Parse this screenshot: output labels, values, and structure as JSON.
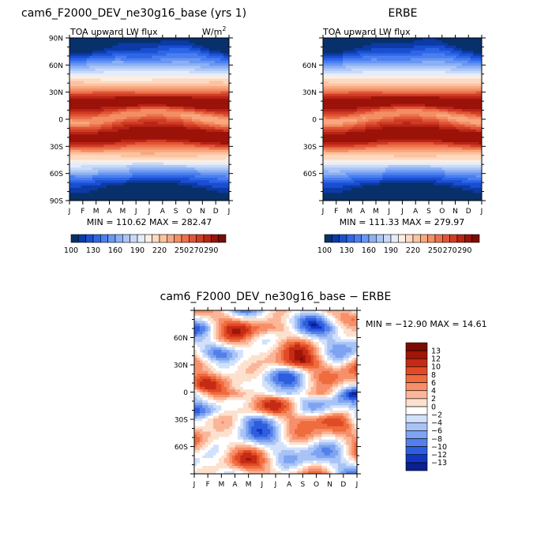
{
  "chart_data": [
    {
      "type": "heatmap",
      "title": "cam6_F2000_DEV_ne30g16_base (yrs 1)",
      "subtitle": "TOA upward LW flux",
      "units": "W/m",
      "units_exp": "2",
      "stats": "MIN = 110.62 MAX = 282.47",
      "x": [
        "J",
        "F",
        "M",
        "A",
        "M",
        "J",
        "J",
        "A",
        "S",
        "O",
        "N",
        "D",
        "J"
      ],
      "y": [
        "90N",
        "60N",
        "30N",
        "0",
        "30S",
        "60S",
        "90S"
      ],
      "levels": [
        100,
        110,
        120,
        130,
        140,
        150,
        160,
        170,
        180,
        190,
        200,
        210,
        220,
        230,
        240,
        250,
        260,
        270,
        280,
        290,
        300
      ],
      "colorbar_labels": [
        "100",
        "130",
        "160",
        "190",
        "220",
        "250",
        "270",
        "290"
      ]
    },
    {
      "type": "heatmap",
      "title": "ERBE",
      "subtitle": "TOA upward LW flux",
      "stats": "MIN = 111.33 MAX = 279.97",
      "x": [
        "J",
        "F",
        "M",
        "A",
        "M",
        "J",
        "J",
        "A",
        "S",
        "O",
        "N",
        "D",
        "J"
      ],
      "y": [
        "60N",
        "30N",
        "0",
        "30S",
        "60S"
      ],
      "levels": [
        100,
        110,
        120,
        130,
        140,
        150,
        160,
        170,
        180,
        190,
        200,
        210,
        220,
        230,
        240,
        250,
        260,
        270,
        280,
        290,
        300
      ],
      "colorbar_labels": [
        "100",
        "130",
        "160",
        "190",
        "220",
        "250",
        "270",
        "290"
      ]
    },
    {
      "type": "heatmap",
      "title": "cam6_F2000_DEV_ne30g16_base − ERBE",
      "stats": "MIN = −12.90 MAX =  14.61",
      "x": [
        "J",
        "F",
        "M",
        "A",
        "M",
        "J",
        "J",
        "A",
        "S",
        "O",
        "N",
        "D",
        "J"
      ],
      "y": [
        "60N",
        "30N",
        "0",
        "30S",
        "60S"
      ],
      "colorbar_labels": [
        "13",
        "12",
        "10",
        "8",
        "6",
        "4",
        "2",
        "0",
        "−2",
        "−4",
        "−6",
        "−8",
        "−10",
        "−12",
        "−13"
      ]
    }
  ],
  "palettes": {
    "flux": [
      "#08306b",
      "#0c3aa6",
      "#1a4fd1",
      "#2e66e8",
      "#4a7fef",
      "#6a97f2",
      "#8cb0f4",
      "#acc7f6",
      "#cad9f8",
      "#e4edfb",
      "#fbeee3",
      "#fcd9c0",
      "#fcc3a0",
      "#f8a881",
      "#f38e65",
      "#ec714b",
      "#e05536",
      "#cf3c24",
      "#b82416",
      "#9a1208",
      "#7a0b05"
    ],
    "diff": [
      "#7d0b04",
      "#a01508",
      "#c52b14",
      "#e04a25",
      "#ef6c3e",
      "#f7906a",
      "#fbb699",
      "#fde0cd",
      "#ffffff",
      "#d2e1fb",
      "#a8c3f6",
      "#7ea3f0",
      "#5380ea",
      "#2d5edf",
      "#1236c0",
      "#0b1f8e"
    ]
  }
}
